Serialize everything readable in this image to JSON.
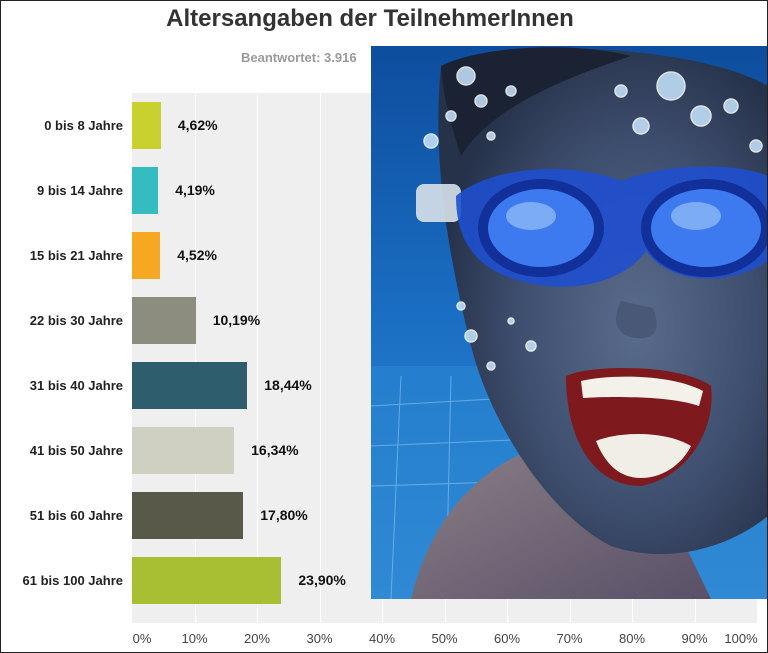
{
  "chart_data": {
    "type": "bar",
    "orientation": "horizontal",
    "title": "Altersangaben der TeilnehmerInnen",
    "subtitle": "Beantwortet: 3.916",
    "categories": [
      "0 bis 8 Jahre",
      "9 bis 14 Jahre",
      "15 bis 21 Jahre",
      "22 bis 30 Jahre",
      "31 bis 40 Jahre",
      "41 bis 50 Jahre",
      "51 bis 60 Jahre",
      "61 bis 100 Jahre"
    ],
    "values": [
      4.62,
      4.19,
      4.52,
      10.19,
      18.44,
      16.34,
      17.8,
      23.9
    ],
    "value_labels": [
      "4,62%",
      "4,19%",
      "4,52%",
      "10,19%",
      "18,44%",
      "16,34%",
      "17,80%",
      "23,90%"
    ],
    "colors": [
      "#c9d12e",
      "#35bcc0",
      "#f7a823",
      "#8d8d7f",
      "#2e5d6e",
      "#cfcfc2",
      "#595949",
      "#a8bf34"
    ],
    "xlim": [
      0,
      100
    ],
    "x_ticks": [
      "0%",
      "10%",
      "20%",
      "30%",
      "40%",
      "50%",
      "60%",
      "70%",
      "80%",
      "90%",
      "100%"
    ],
    "x_tick_values": [
      0,
      10,
      20,
      30,
      40,
      50,
      60,
      70,
      80,
      90,
      100
    ],
    "grid": true,
    "xlabel": "",
    "ylabel": ""
  },
  "overlay_photo": {
    "icon": "underwater-swimmer-photo"
  }
}
